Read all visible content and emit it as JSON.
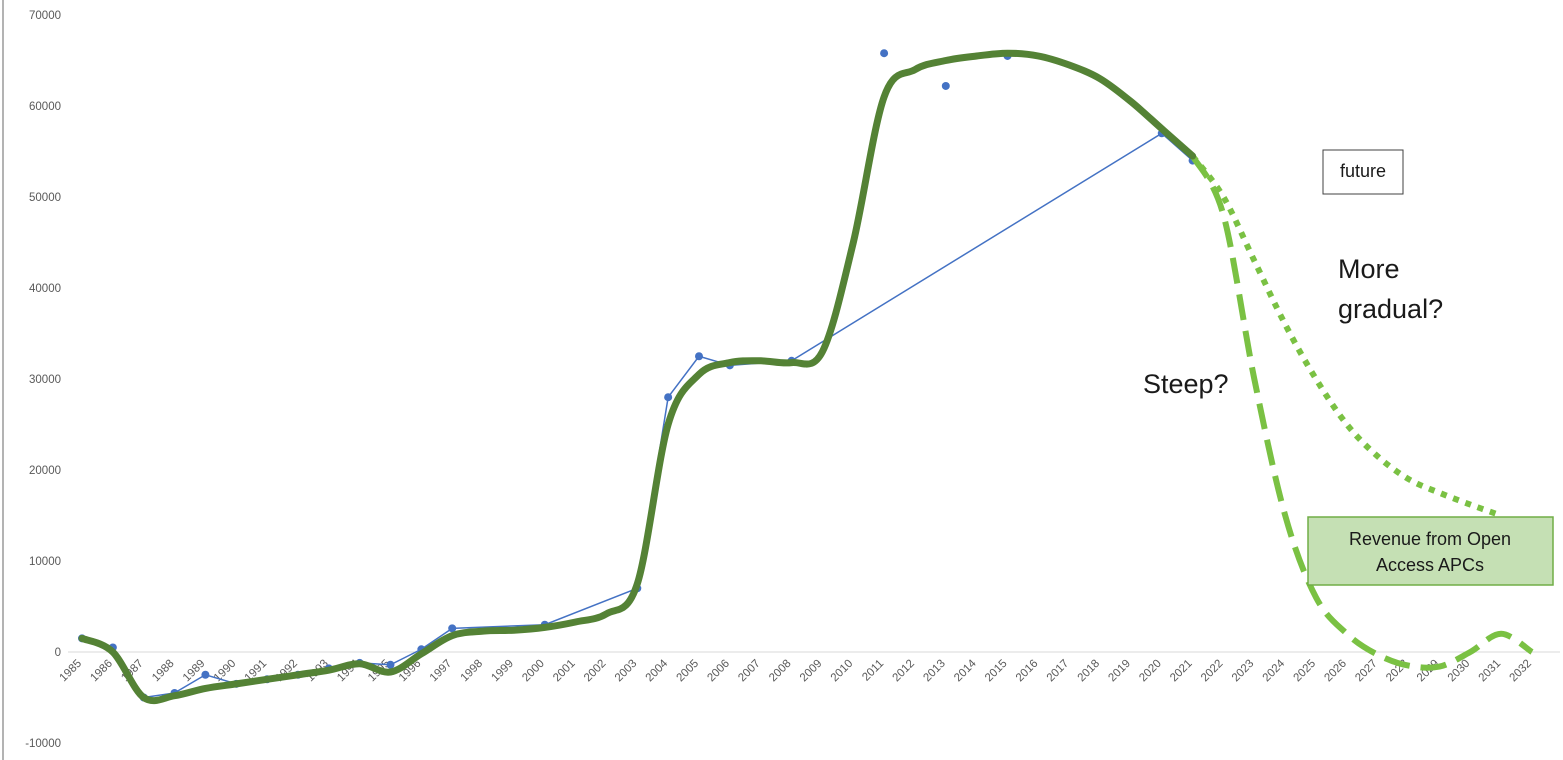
{
  "chart_data": {
    "type": "line",
    "ylim": [
      -10000,
      70000
    ],
    "yticks": [
      70000,
      60000,
      50000,
      40000,
      30000,
      20000,
      10000,
      0,
      -10000
    ],
    "categories": [
      "1985",
      "1986",
      "1987",
      "1988",
      "1989",
      "1990",
      "1991",
      "1992",
      "1993",
      "1994",
      "1995",
      "1996",
      "1997",
      "1998",
      "1999",
      "2000",
      "2001",
      "2002",
      "2003",
      "2004",
      "2005",
      "2006",
      "2007",
      "2008",
      "2009",
      "2010",
      "2011",
      "2012",
      "2013",
      "2014",
      "2015",
      "2016",
      "2017",
      "2018",
      "2019",
      "2020",
      "2021",
      "2022",
      "2023",
      "2024",
      "2025",
      "2026",
      "2027",
      "2028",
      "2029",
      "2030",
      "2031",
      "2032"
    ],
    "series": [
      {
        "role": "observed",
        "color": "#4472c4",
        "points": [
          {
            "x": "1985",
            "y": 1500
          },
          {
            "x": "1986",
            "y": 500
          },
          {
            "x": "1987",
            "y": -5000
          },
          {
            "x": "1988",
            "y": -4500
          },
          {
            "x": "1989",
            "y": -2500
          },
          {
            "x": "1990",
            "y": -3500
          },
          {
            "x": "1991",
            "y": -3000
          },
          {
            "x": "1992",
            "y": -2500
          },
          {
            "x": "1993",
            "y": -1800
          },
          {
            "x": "1994",
            "y": -1200
          },
          {
            "x": "1995",
            "y": -1400
          },
          {
            "x": "1996",
            "y": 300
          },
          {
            "x": "1997",
            "y": 2600
          },
          {
            "x": "2000",
            "y": 3000
          },
          {
            "x": "2003",
            "y": 7000
          },
          {
            "x": "2004",
            "y": 28000
          },
          {
            "x": "2005",
            "y": 32500
          },
          {
            "x": "2006",
            "y": 31500
          },
          {
            "x": "2008",
            "y": 32000
          },
          {
            "x": "2020",
            "y": 57000
          },
          {
            "x": "2021",
            "y": 54000
          }
        ],
        "unconnected_points": [
          {
            "x": "2011",
            "y": 65800
          },
          {
            "x": "2013",
            "y": 62200
          },
          {
            "x": "2015",
            "y": 65500
          }
        ]
      },
      {
        "role": "trend",
        "color": "#548235",
        "points": [
          {
            "x": "1985",
            "y": 1500
          },
          {
            "x": "1986",
            "y": 0
          },
          {
            "x": "1987",
            "y": -5000
          },
          {
            "x": "1988",
            "y": -4800
          },
          {
            "x": "1989",
            "y": -4000
          },
          {
            "x": "1990",
            "y": -3500
          },
          {
            "x": "1991",
            "y": -3000
          },
          {
            "x": "1992",
            "y": -2500
          },
          {
            "x": "1993",
            "y": -2000
          },
          {
            "x": "1994",
            "y": -1300
          },
          {
            "x": "1995",
            "y": -2200
          },
          {
            "x": "1996",
            "y": -200
          },
          {
            "x": "1997",
            "y": 1800
          },
          {
            "x": "1998",
            "y": 2300
          },
          {
            "x": "1999",
            "y": 2400
          },
          {
            "x": "2000",
            "y": 2700
          },
          {
            "x": "2001",
            "y": 3300
          },
          {
            "x": "2002",
            "y": 4200
          },
          {
            "x": "2003",
            "y": 7500
          },
          {
            "x": "2004",
            "y": 25000
          },
          {
            "x": "2005",
            "y": 30500
          },
          {
            "x": "2006",
            "y": 31800
          },
          {
            "x": "2007",
            "y": 32000
          },
          {
            "x": "2008",
            "y": 31800
          },
          {
            "x": "2009",
            "y": 33000
          },
          {
            "x": "2010",
            "y": 45000
          },
          {
            "x": "2011",
            "y": 61000
          },
          {
            "x": "2012",
            "y": 64000
          },
          {
            "x": "2013",
            "y": 65000
          },
          {
            "x": "2014",
            "y": 65500
          },
          {
            "x": "2015",
            "y": 65800
          },
          {
            "x": "2016",
            "y": 65500
          },
          {
            "x": "2017",
            "y": 64500
          },
          {
            "x": "2018",
            "y": 63000
          },
          {
            "x": "2019",
            "y": 60500
          },
          {
            "x": "2020",
            "y": 57500
          },
          {
            "x": "2021",
            "y": 54500
          }
        ]
      },
      {
        "role": "projection-steep",
        "color": "#7ac143",
        "style": "dashed",
        "points": [
          {
            "x": "2021",
            "y": 54500
          },
          {
            "x": "2022",
            "y": 48000
          },
          {
            "x": "2023",
            "y": 30000
          },
          {
            "x": "2024",
            "y": 15000
          },
          {
            "x": "2025",
            "y": 6000
          },
          {
            "x": "2026",
            "y": 2000
          },
          {
            "x": "2027",
            "y": -300
          },
          {
            "x": "2028",
            "y": -1500
          },
          {
            "x": "2029",
            "y": -1600
          },
          {
            "x": "2030",
            "y": 0
          },
          {
            "x": "2031",
            "y": 2000
          },
          {
            "x": "2032",
            "y": 0
          }
        ]
      },
      {
        "role": "projection-gradual",
        "color": "#7ac143",
        "style": "dotted",
        "points": [
          {
            "x": "2021",
            "y": 54500
          },
          {
            "x": "2022",
            "y": 50000
          },
          {
            "x": "2023",
            "y": 43000
          },
          {
            "x": "2024",
            "y": 36000
          },
          {
            "x": "2025",
            "y": 30000
          },
          {
            "x": "2026",
            "y": 25000
          },
          {
            "x": "2027",
            "y": 21500
          },
          {
            "x": "2028",
            "y": 19000
          },
          {
            "x": "2029",
            "y": 17500
          },
          {
            "x": "2030",
            "y": 16200
          },
          {
            "x": "2031",
            "y": 15000
          }
        ]
      }
    ],
    "annotations": {
      "future": "future",
      "gradual_line1": "More",
      "gradual_line2": "gradual?",
      "steep": "Steep?",
      "apc_line1": "Revenue from Open",
      "apc_line2": "Access APCs"
    },
    "annotation_colors": {
      "apc_box_fill": "#c5e0b4",
      "apc_box_border": "#70ad47"
    },
    "grid": false
  }
}
